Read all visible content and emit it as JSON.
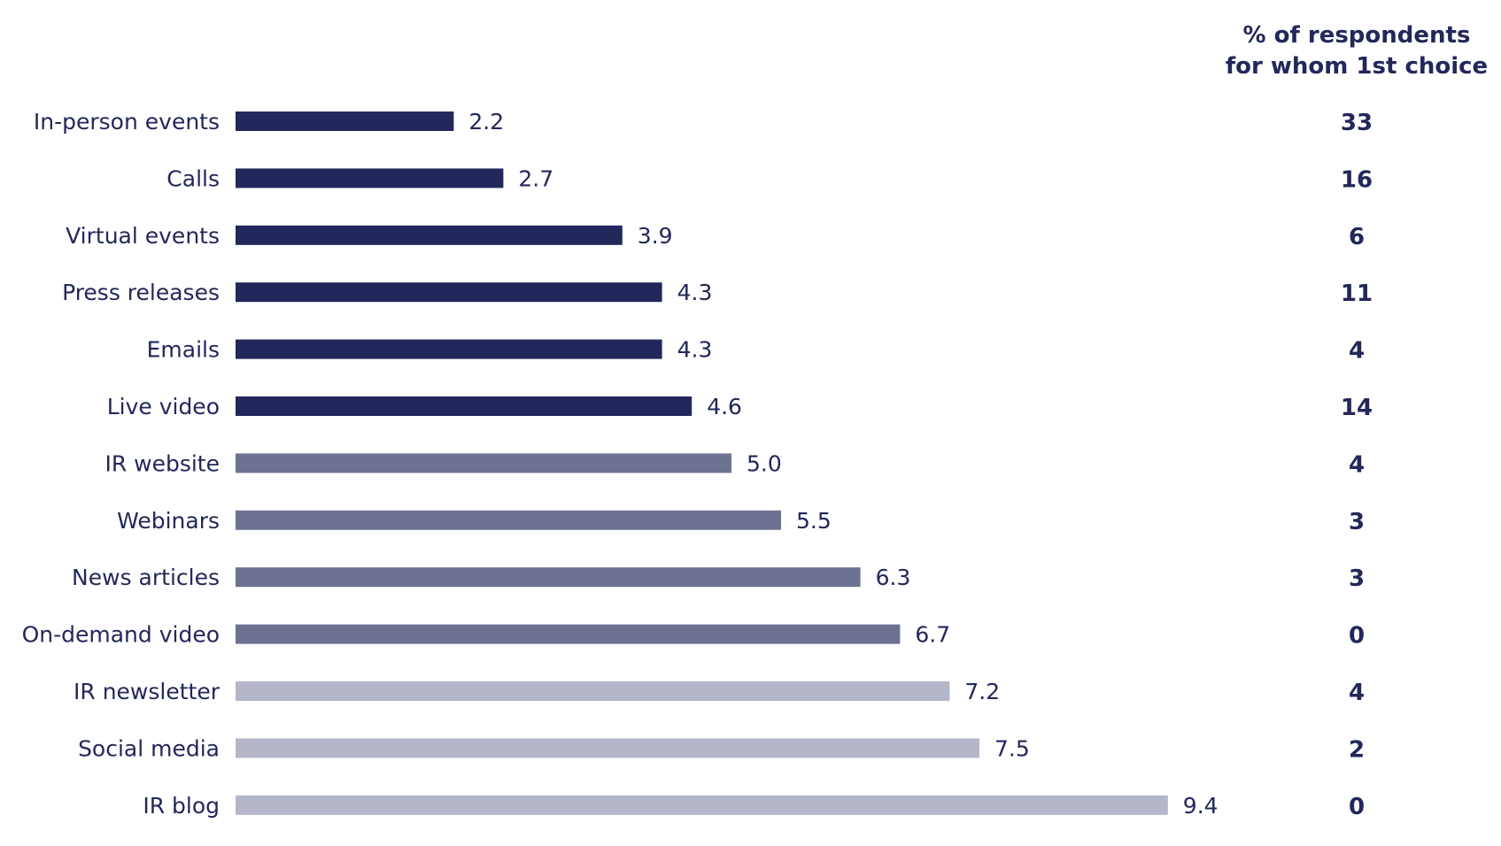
{
  "chart_data": {
    "type": "bar",
    "orientation": "horizontal",
    "categories": [
      "In-person events",
      "Calls",
      "Virtual events",
      "Press releases",
      "Emails",
      "Live video",
      "IR website",
      "Webinars",
      "News articles",
      "On-demand video",
      "IR newsletter",
      "Social media",
      "IR blog"
    ],
    "values": [
      2.2,
      2.7,
      3.9,
      4.3,
      4.3,
      4.6,
      5.0,
      5.5,
      6.3,
      6.7,
      7.2,
      7.5,
      9.4
    ],
    "value_labels": [
      "2.2",
      "2.7",
      "3.9",
      "4.3",
      "4.3",
      "4.6",
      "5.0",
      "5.5",
      "6.3",
      "6.7",
      "7.2",
      "7.5",
      "9.4"
    ],
    "bar_colors": [
      "#22285a",
      "#22285a",
      "#22285a",
      "#22285a",
      "#22285a",
      "#22285a",
      "#6d7293",
      "#6d7293",
      "#6d7293",
      "#6d7293",
      "#b4b6c9",
      "#b4b6c9",
      "#b4b6c9"
    ],
    "xlim": [
      0,
      10
    ],
    "grid": false,
    "legend": "none",
    "secondary_column": {
      "header_lines": [
        "% of respondents",
        "for whom 1st choice"
      ],
      "values": [
        "33",
        "16",
        "6",
        "11",
        "4",
        "14",
        "4",
        "3",
        "3",
        "0",
        "4",
        "2",
        "0"
      ]
    },
    "text_color": "#22285a"
  }
}
